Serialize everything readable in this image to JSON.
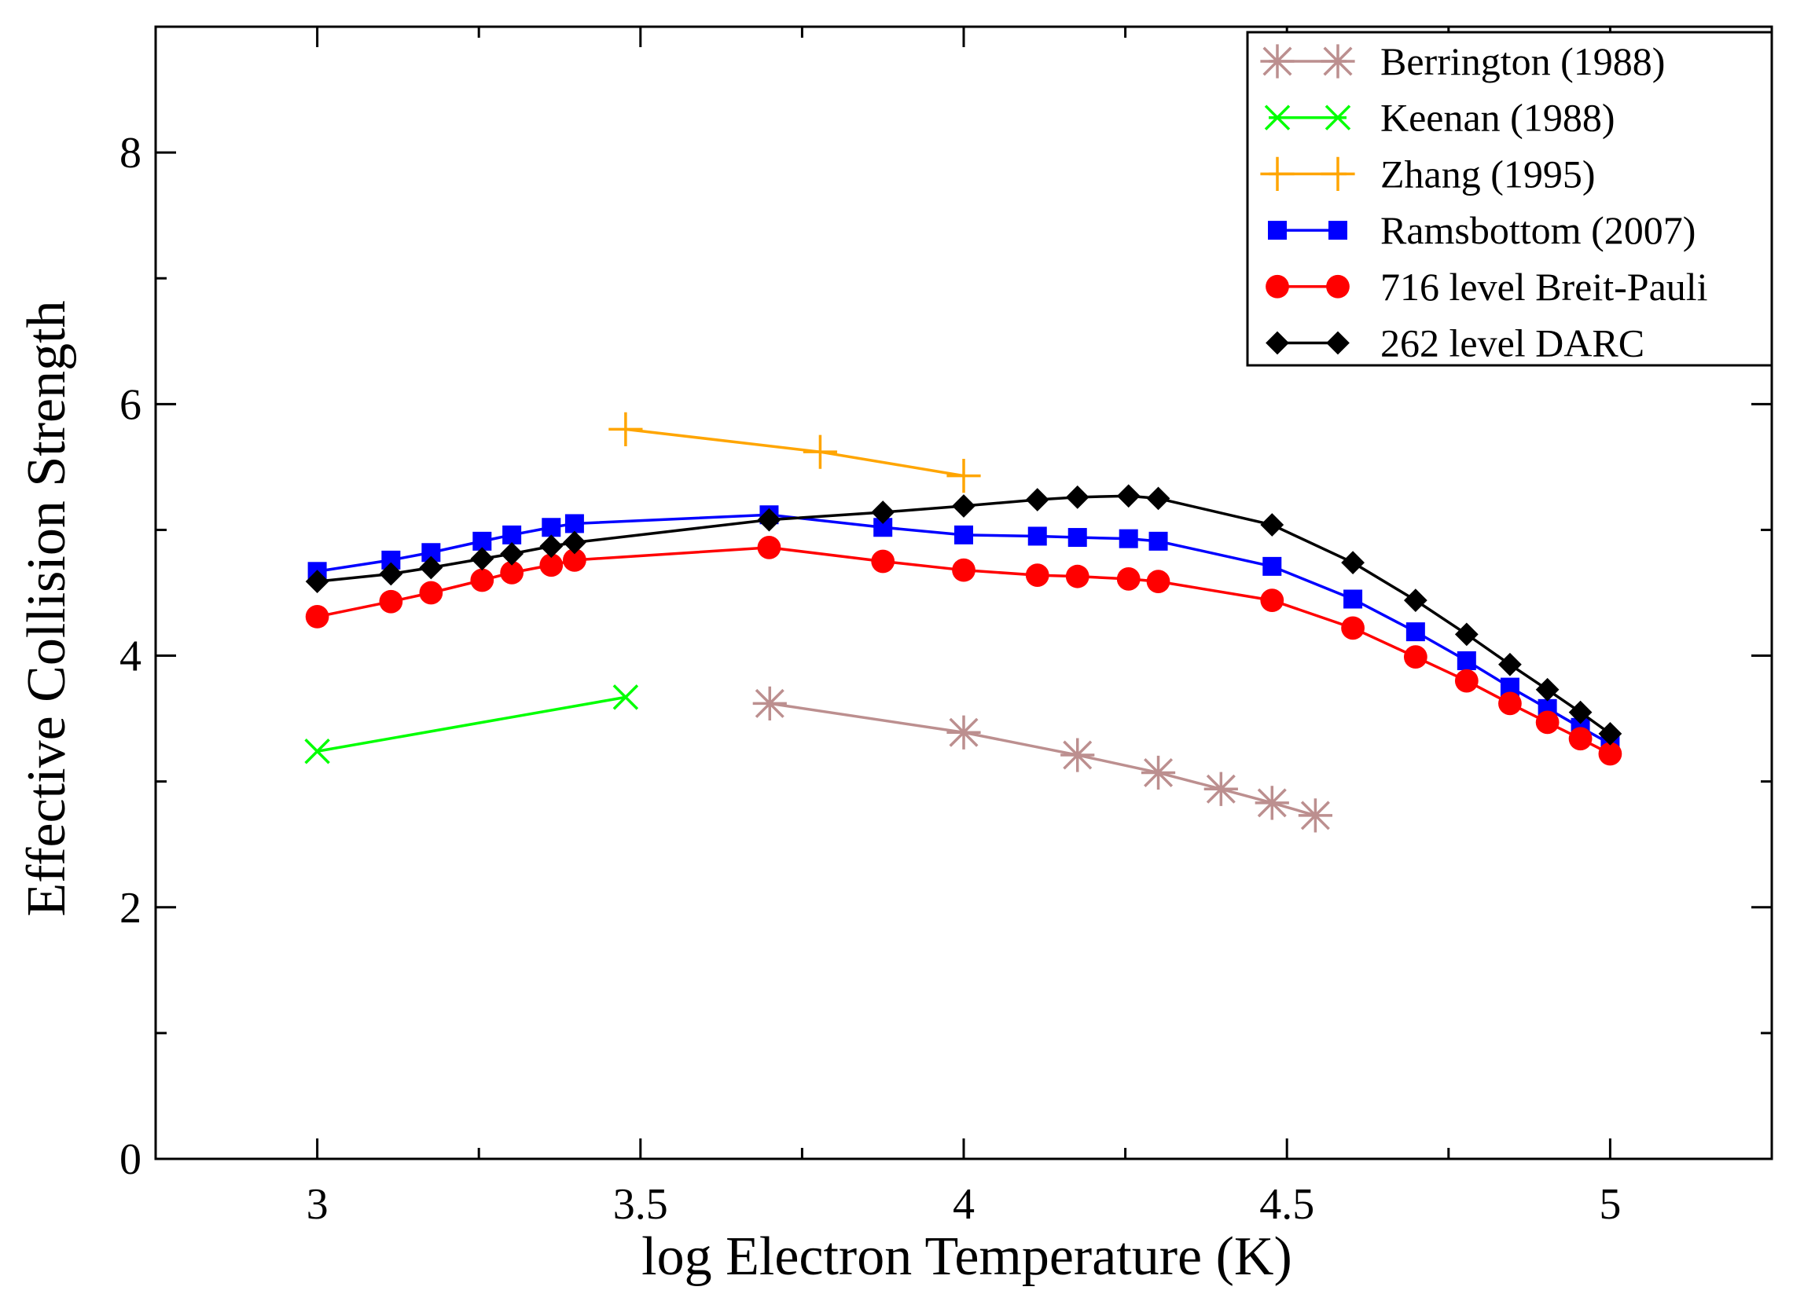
{
  "chart_data": {
    "type": "line",
    "xlabel": "log Electron Temperature (K)",
    "ylabel": "Effective Collision Strength",
    "xlim": [
      2.75,
      5.25
    ],
    "ylim": [
      0,
      9
    ],
    "x_ticks": [
      3,
      3.5,
      4,
      4.5,
      5
    ],
    "x_tick_labels": [
      "3",
      "3.5",
      "4",
      "4.5",
      "5"
    ],
    "x_minor_ticks": [
      3.25,
      3.75,
      4.25,
      4.75
    ],
    "y_ticks": [
      0,
      2,
      4,
      6,
      8
    ],
    "y_tick_labels": [
      "0",
      "2",
      "4",
      "6",
      "8"
    ],
    "y_minor_ticks": [
      1,
      3,
      5,
      7
    ],
    "legend_position": "top-right",
    "series": [
      {
        "name": "Berrington (1988)",
        "color": "#bc8f8f",
        "marker": "asterisk",
        "x": [
          3.7,
          4.0,
          4.176,
          4.301,
          4.398,
          4.477,
          4.544
        ],
        "y": [
          3.62,
          3.39,
          3.21,
          3.07,
          2.94,
          2.83,
          2.73
        ]
      },
      {
        "name": "Keenan (1988)",
        "color": "#00ff00",
        "marker": "x",
        "x": [
          3.0,
          3.477
        ],
        "y": [
          3.24,
          3.67
        ]
      },
      {
        "name": "Zhang (1995)",
        "color": "#ffa500",
        "marker": "plus",
        "x": [
          3.477,
          3.778,
          4.0
        ],
        "y": [
          5.8,
          5.62,
          5.43
        ]
      },
      {
        "name": "Ramsbottom (2007)",
        "color": "#0000ff",
        "marker": "square",
        "x": [
          3.0,
          3.114,
          3.176,
          3.255,
          3.301,
          3.362,
          3.398,
          3.699,
          3.875,
          4.0,
          4.114,
          4.176,
          4.255,
          4.301,
          4.477,
          4.602,
          4.699,
          4.778,
          4.845,
          4.903,
          4.954,
          5.0
        ],
        "y": [
          4.67,
          4.76,
          4.82,
          4.91,
          4.96,
          5.02,
          5.05,
          5.12,
          5.02,
          4.96,
          4.95,
          4.94,
          4.93,
          4.91,
          4.71,
          4.45,
          4.19,
          3.96,
          3.75,
          3.58,
          3.43,
          3.3
        ]
      },
      {
        "name": "716 level Breit-Pauli",
        "color": "#ff0000",
        "marker": "circle",
        "x": [
          3.0,
          3.114,
          3.176,
          3.255,
          3.301,
          3.362,
          3.398,
          3.699,
          3.875,
          4.0,
          4.114,
          4.176,
          4.255,
          4.301,
          4.477,
          4.602,
          4.699,
          4.778,
          4.845,
          4.903,
          4.954,
          5.0
        ],
        "y": [
          4.31,
          4.43,
          4.5,
          4.6,
          4.66,
          4.72,
          4.76,
          4.86,
          4.75,
          4.68,
          4.64,
          4.63,
          4.61,
          4.59,
          4.44,
          4.22,
          3.99,
          3.8,
          3.62,
          3.47,
          3.34,
          3.22
        ]
      },
      {
        "name": "262 level DARC",
        "color": "#000000",
        "marker": "diamond",
        "x": [
          3.0,
          3.114,
          3.176,
          3.255,
          3.301,
          3.362,
          3.398,
          3.699,
          3.875,
          4.0,
          4.114,
          4.176,
          4.255,
          4.301,
          4.477,
          4.602,
          4.699,
          4.778,
          4.845,
          4.903,
          4.954,
          5.0
        ],
        "y": [
          4.59,
          4.65,
          4.7,
          4.77,
          4.81,
          4.87,
          4.9,
          5.08,
          5.14,
          5.19,
          5.24,
          5.26,
          5.27,
          5.25,
          5.04,
          4.74,
          4.44,
          4.17,
          3.93,
          3.73,
          3.55,
          3.38
        ]
      }
    ]
  }
}
